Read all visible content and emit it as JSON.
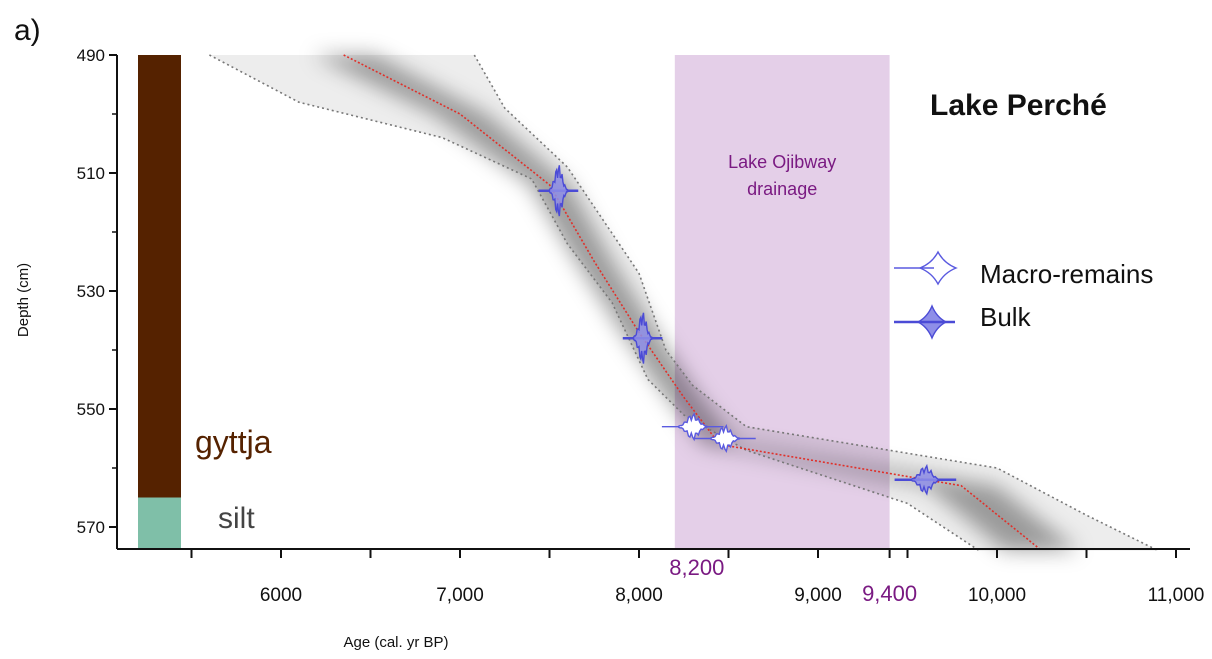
{
  "panel_label": "a)",
  "chart_data": {
    "type": "line",
    "title": "Lake Perché",
    "xlabel": "Age (cal. yr BP)",
    "ylabel": "Depth (cm)",
    "xlim": [
      5000,
      11000
    ],
    "ylim": [
      490,
      574
    ],
    "y_inverted": true,
    "x_ticks": [
      {
        "value": 6000,
        "label": "6000"
      },
      {
        "value": 7000,
        "label": "7,000"
      },
      {
        "value": 8000,
        "label": "8,000"
      },
      {
        "value": 9000,
        "label": "9,000"
      },
      {
        "value": 10000,
        "label": "10,000"
      },
      {
        "value": 11000,
        "label": "11,000"
      }
    ],
    "x_minor_ticks": [
      5500,
      6500,
      7500,
      8500,
      9500,
      10500
    ],
    "y_ticks": [
      490,
      510,
      530,
      550,
      570
    ],
    "y_minor_ticks": [
      500,
      520,
      540,
      560
    ],
    "highlight": {
      "label_line1": "Lake Ojibway",
      "label_line2": "drainage",
      "x_start": 8200,
      "x_end": 9400,
      "start_label": "8,200",
      "end_label": "9,400",
      "color": "#e4cfe8",
      "text_color": "#7a1a82"
    },
    "lithology": [
      {
        "name": "gyttja",
        "top": 490,
        "bottom": 565,
        "color": "#552200"
      },
      {
        "name": "silt",
        "top": 565,
        "bottom": 574,
        "color": "#7fbfa8"
      }
    ],
    "age_model": {
      "median_color": "#e0302a",
      "median": [
        [
          6350,
          490
        ],
        [
          7000,
          500
        ],
        [
          7500,
          512
        ],
        [
          7750,
          525
        ],
        [
          8000,
          537
        ],
        [
          8250,
          548
        ],
        [
          8450,
          556
        ],
        [
          9800,
          563
        ],
        [
          10250,
          574
        ]
      ],
      "lower": [
        [
          5600,
          490
        ],
        [
          6100,
          498
        ],
        [
          6900,
          504
        ],
        [
          7400,
          511
        ],
        [
          7600,
          522
        ],
        [
          7850,
          532
        ],
        [
          8050,
          545
        ],
        [
          8250,
          551
        ],
        [
          8600,
          557
        ],
        [
          9500,
          566
        ],
        [
          9900,
          574
        ]
      ],
      "upper": [
        [
          7080,
          490
        ],
        [
          7250,
          499
        ],
        [
          7600,
          509
        ],
        [
          8000,
          527
        ],
        [
          8150,
          540
        ],
        [
          8300,
          546
        ],
        [
          8600,
          553
        ],
        [
          10000,
          560
        ],
        [
          10500,
          568
        ],
        [
          10900,
          574
        ]
      ]
    },
    "legend": {
      "position": "right",
      "entries": [
        {
          "name": "Macro-remains",
          "style": "outline"
        },
        {
          "name": "Bulk",
          "style": "filled"
        }
      ]
    },
    "dates": [
      {
        "type": "bulk",
        "depth": 513,
        "age": 7550
      },
      {
        "type": "bulk",
        "depth": 538,
        "age": 8020
      },
      {
        "type": "macro",
        "depth": 553,
        "age": 8300
      },
      {
        "type": "macro",
        "depth": 555,
        "age": 8480
      },
      {
        "type": "bulk",
        "depth": 562,
        "age": 9600
      }
    ]
  }
}
